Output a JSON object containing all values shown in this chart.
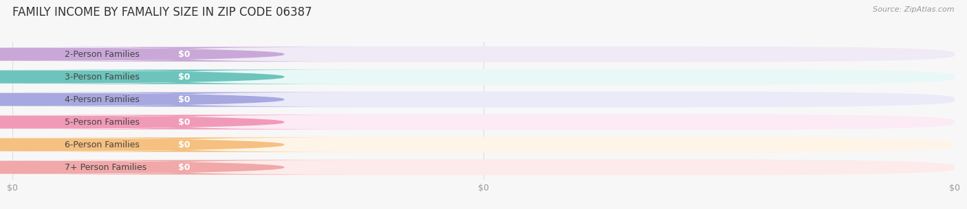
{
  "title": "FAMILY INCOME BY FAMALIY SIZE IN ZIP CODE 06387",
  "source": "Source: ZipAtlas.com",
  "categories": [
    "2-Person Families",
    "3-Person Families",
    "4-Person Families",
    "5-Person Families",
    "6-Person Families",
    "7+ Person Families"
  ],
  "values": [
    0,
    0,
    0,
    0,
    0,
    0
  ],
  "bar_colors": [
    "#c9a8d8",
    "#6dc4bc",
    "#a8a8e0",
    "#f09ab8",
    "#f5c080",
    "#f0a8a8"
  ],
  "bar_bg_colors": [
    "#f0eaf6",
    "#e8f8f6",
    "#eaeaf8",
    "#fceaf4",
    "#fef4e8",
    "#fdeaea"
  ],
  "value_labels": [
    "$0",
    "$0",
    "$0",
    "$0",
    "$0",
    "$0"
  ],
  "xlabel_ticks": [
    "$0",
    "$0",
    "$0"
  ],
  "xlabel_tick_positions": [
    0.0,
    0.5,
    1.0
  ],
  "background_color": "#f7f7f7",
  "title_fontsize": 12,
  "label_fontsize": 9,
  "value_fontsize": 9,
  "source_fontsize": 8
}
